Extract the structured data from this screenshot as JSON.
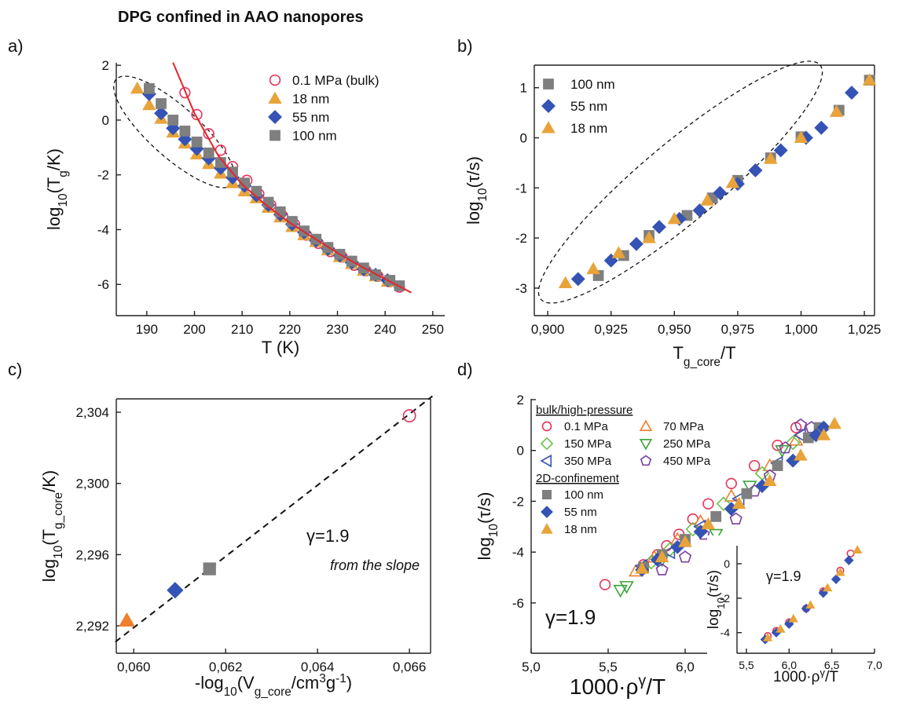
{
  "title": "DPG confined in AAO nanopores",
  "chart_data": [
    {
      "type": "scatter",
      "panel_label": "a)",
      "xlabel": [
        "T (K)"
      ],
      "ylabel": [
        "log",
        {
          "sub": "10"
        },
        "(T",
        {
          "sub": "g"
        },
        "/K)"
      ],
      "xlim": [
        183.6,
        252.5
      ],
      "ylim": [
        -7.14,
        2.09
      ],
      "xticks": [
        190,
        200,
        210,
        220,
        230,
        240,
        250
      ],
      "yticks": [
        -6,
        -4,
        -2,
        0,
        2
      ],
      "frame": "axes",
      "legend": "upper right",
      "series": [
        {
          "name": "0.1 MPa (bulk)",
          "color": "#e8325a",
          "marker": "circle",
          "filled": false,
          "x": [
            198,
            200.5,
            203,
            205.5,
            208,
            211,
            213.5,
            216,
            218.5,
            221,
            223.5,
            226,
            228.5,
            231,
            233.5,
            236,
            238.5,
            241,
            243
          ],
          "values": [
            1.0,
            0.2,
            -0.5,
            -1.1,
            -1.7,
            -2.2,
            -2.7,
            -3.1,
            -3.5,
            -3.8,
            -4.2,
            -4.5,
            -4.8,
            -5.0,
            -5.3,
            -5.5,
            -5.7,
            -5.9,
            -6.1
          ]
        },
        {
          "name": "18 nm",
          "color": "#e8a33a",
          "marker": "triangle",
          "filled": true,
          "x": [
            188,
            190.5,
            193,
            195.5,
            198,
            200.5,
            203,
            205.5,
            208,
            210.5,
            213,
            215.5,
            218,
            220.5,
            223,
            225.5,
            228,
            230.5,
            233,
            235.5,
            238,
            240.5
          ],
          "values": [
            1.15,
            0.55,
            0.05,
            -0.45,
            -0.85,
            -1.25,
            -1.6,
            -1.95,
            -2.3,
            -2.6,
            -2.85,
            -3.2,
            -3.55,
            -3.9,
            -4.2,
            -4.45,
            -4.75,
            -5.0,
            -5.25,
            -5.5,
            -5.7,
            -5.9
          ]
        },
        {
          "name": "55 nm",
          "color": "#3553b5",
          "marker": "diamond",
          "filled": true,
          "x": [
            190.5,
            193,
            195.5,
            198,
            200.5,
            203,
            205.5,
            208,
            210.5,
            213,
            215.5,
            218,
            220.5,
            223,
            225.5,
            228,
            230.5,
            233,
            235.5,
            238,
            240.5
          ],
          "values": [
            0.95,
            0.25,
            -0.3,
            -0.7,
            -1.05,
            -1.4,
            -1.75,
            -2.1,
            -2.4,
            -2.75,
            -3.1,
            -3.45,
            -3.8,
            -4.1,
            -4.4,
            -4.7,
            -4.95,
            -5.2,
            -5.45,
            -5.65,
            -5.85
          ]
        },
        {
          "name": "100 nm",
          "color": "#7f7f7f",
          "marker": "square",
          "filled": true,
          "x": [
            190.5,
            193,
            195.5,
            198,
            200.5,
            203,
            205.5,
            208,
            210.5,
            213,
            215.5,
            218,
            220.5,
            223,
            225.5,
            228,
            230.5,
            233,
            235.5,
            238,
            241,
            243
          ],
          "values": [
            1.15,
            0.6,
            0.0,
            -0.4,
            -0.8,
            -1.2,
            -1.55,
            -1.9,
            -2.3,
            -2.6,
            -3.0,
            -3.35,
            -3.7,
            -4.05,
            -4.35,
            -4.65,
            -4.9,
            -5.15,
            -5.4,
            -5.65,
            -5.85,
            -6.05
          ]
        },
        {
          "color": "#e6242b",
          "style": "solid",
          "x": [
            195.5,
            200,
            205,
            210,
            215,
            220,
            225,
            230,
            235,
            240,
            245.5
          ],
          "values": [
            2.1,
            0.25,
            -1.3,
            -2.35,
            -3.1,
            -3.75,
            -4.3,
            -4.85,
            -5.35,
            -5.8,
            -6.3
          ]
        }
      ]
    },
    {
      "type": "scatter",
      "panel_label": "b)",
      "xlabel": [
        "T",
        {
          "sub": "g_core"
        },
        "/T"
      ],
      "ylabel": [
        "log",
        {
          "sub": "10"
        },
        "(τ/s)"
      ],
      "xlim": [
        0.8947,
        1.029
      ],
      "ylim": [
        -3.55,
        1.45
      ],
      "xticks": [
        {
          "value": 0.9,
          "label": "0,900"
        },
        {
          "value": 0.925,
          "label": "0,925"
        },
        {
          "value": 0.95,
          "label": "0,950"
        },
        {
          "value": 0.975,
          "label": "0,975"
        },
        {
          "value": 1.0,
          "label": "1,000"
        },
        {
          "value": 1.025,
          "label": "1,025"
        }
      ],
      "yticks": [
        -3,
        -2,
        -1,
        0,
        1
      ],
      "frame": "box",
      "legend": "upper left",
      "series": [
        {
          "name": "100 nm",
          "color": "#7f7f7f",
          "marker": "square",
          "filled": true,
          "x": [
            0.92,
            0.93,
            0.94,
            0.955,
            0.965,
            0.975,
            0.988,
            1.0,
            1.015,
            1.027
          ],
          "values": [
            -2.75,
            -2.35,
            -1.95,
            -1.55,
            -1.2,
            -0.85,
            -0.4,
            0.02,
            0.55,
            1.15
          ]
        },
        {
          "name": "55 nm",
          "color": "#3553b5",
          "marker": "diamond",
          "filled": true,
          "x": [
            0.912,
            0.925,
            0.935,
            0.944,
            0.952,
            0.96,
            0.968,
            0.975,
            0.982,
            0.992,
            1.002,
            1.008,
            1.02
          ],
          "values": [
            -2.82,
            -2.45,
            -2.12,
            -1.78,
            -1.62,
            -1.45,
            -1.1,
            -0.92,
            -0.65,
            -0.25,
            0.0,
            0.2,
            0.9
          ]
        },
        {
          "name": "18 nm",
          "color": "#e8a33a",
          "marker": "triangle",
          "filled": true,
          "x": [
            0.907,
            0.918,
            0.928,
            0.94,
            0.95,
            0.963,
            0.973,
            0.988,
            1.0,
            1.014,
            1.027
          ],
          "values": [
            -2.9,
            -2.62,
            -2.3,
            -2.0,
            -1.62,
            -1.25,
            -0.9,
            -0.42,
            0.0,
            0.52,
            1.15
          ]
        }
      ]
    },
    {
      "type": "scatter",
      "panel_label": "c)",
      "xlabel": [
        "-log",
        {
          "sub": "10"
        },
        "(V",
        {
          "sub": "g_core"
        },
        "/cm",
        {
          "sup": "3"
        },
        "g",
        {
          "sup": "-1"
        },
        ")"
      ],
      "ylabel": [
        "log",
        {
          "sub": "10"
        },
        "(T",
        {
          "sub": "g_core"
        },
        "/K)"
      ],
      "xlim": [
        0.05962,
        0.06646
      ],
      "ylim": [
        2.29046,
        2.30475
      ],
      "xticks": [
        {
          "value": 0.06,
          "label": "0,060"
        },
        {
          "value": 0.062,
          "label": "0,062"
        },
        {
          "value": 0.064,
          "label": "0,064"
        },
        {
          "value": 0.066,
          "label": "0,066"
        }
      ],
      "yticks": [
        {
          "value": 2.292,
          "label": "2,292"
        },
        {
          "value": 2.296,
          "label": "2,296"
        },
        {
          "value": 2.3,
          "label": "2,300"
        },
        {
          "value": 2.304,
          "label": "2,304"
        }
      ],
      "frame": "box",
      "annotations": [
        "γ=1.9",
        "from the slope"
      ],
      "series": [
        {
          "color": "#111111",
          "style": "dashed",
          "x": [
            0.0596,
            0.0665
          ],
          "values": [
            2.2911,
            2.3049
          ]
        },
        {
          "color": "#f07e2c",
          "marker": "triangle",
          "filled": true,
          "x": [
            0.05985
          ],
          "values": [
            2.2923
          ]
        },
        {
          "color": "#3553b5",
          "marker": "diamond",
          "filled": true,
          "x": [
            0.0609
          ],
          "values": [
            2.294
          ]
        },
        {
          "color": "#7f7f7f",
          "marker": "square",
          "filled": true,
          "x": [
            0.06165
          ],
          "values": [
            2.2952
          ]
        },
        {
          "color": "#e8325a",
          "marker": "circle",
          "filled": false,
          "x": [
            0.066
          ],
          "values": [
            2.3038
          ]
        }
      ]
    },
    {
      "type": "scatter",
      "panel_label": "d)",
      "xlabel": [
        "1000·ρ",
        {
          "sup": "γ"
        },
        "/T"
      ],
      "ylabel": [
        "log",
        {
          "sub": "10"
        },
        "(τ/s)"
      ],
      "xlim": [
        5.0,
        7.0
      ],
      "ylim": [
        -7.98,
        2.03
      ],
      "xticks": [
        {
          "value": 5.0,
          "label": "5,0"
        },
        {
          "value": 5.5,
          "label": "5,5"
        },
        {
          "value": 6.0,
          "label": "6,0"
        }
      ],
      "yticks": [
        -6,
        -4,
        -2,
        0,
        2
      ],
      "frame": "axes",
      "legend": "upper left",
      "annotations": [
        "γ=1.9"
      ],
      "groups": [
        {
          "name": "bulk/high-pressure",
          "series": [
            {
              "name": "0.1 MPa",
              "color": "#e8325a",
              "marker": "circle",
              "filled": false,
              "x": [
                5.48,
                5.73,
                5.82,
                5.88,
                5.96,
                6.05,
                6.15,
                6.3,
                6.45,
                6.6,
                6.72
              ],
              "values": [
                -5.28,
                -4.5,
                -4.1,
                -3.75,
                -3.3,
                -2.7,
                -2.1,
                -1.3,
                -0.6,
                0.2,
                0.9
              ]
            },
            {
              "name": "70 MPa",
              "color": "#f07e2c",
              "marker": "triangle",
              "filled": false,
              "x": [
                5.68,
                5.8,
                5.95,
                6.1,
                6.3,
                6.55,
                6.72
              ],
              "values": [
                -4.75,
                -4.2,
                -3.5,
                -2.8,
                -1.8,
                -0.6,
                0.4
              ]
            },
            {
              "name": "150 MPa",
              "color": "#6cc24a",
              "marker": "diamond",
              "filled": false,
              "x": [
                5.78,
                5.9,
                6.05,
                6.25,
                6.5,
                6.7
              ],
              "values": [
                -4.4,
                -3.9,
                -3.1,
                -2.1,
                -0.9,
                0.3
              ]
            },
            {
              "name": "250 MPa",
              "color": "#3aa53a",
              "marker": "triangle-down",
              "filled": false,
              "x": [
                5.58,
                5.62,
                5.85,
                6.2,
                6.42,
                6.63
              ],
              "values": [
                -5.5,
                -5.35,
                -4.3,
                -3.3,
                -1.4,
                0.0
              ]
            },
            {
              "name": "350 MPa",
              "color": "#3553b5",
              "marker": "triangle-left",
              "filled": false,
              "x": [
                5.72,
                5.9,
                6.1,
                6.35,
                6.6,
                6.75
              ],
              "values": [
                -4.55,
                -4.0,
                -3.0,
                -1.9,
                -0.5,
                0.6
              ]
            },
            {
              "name": "450 MPa",
              "color": "#7a3ea0",
              "marker": "pentagon",
              "filled": false,
              "x": [
                5.85,
                6.0,
                6.12,
                6.2,
                6.33,
                6.45,
                6.55,
                6.65,
                6.75,
                6.82
              ],
              "values": [
                -4.7,
                -4.2,
                -3.3,
                -3.6,
                -2.7,
                -1.6,
                -1.0,
                0.1,
                1.0,
                0.9
              ]
            }
          ]
        },
        {
          "name": "2D-confinement",
          "series": [
            {
              "name": "100 nm",
              "color": "#7f7f7f",
              "marker": "square",
              "filled": true,
              "x": [
                5.73,
                5.85,
                6.0,
                6.2,
                6.4,
                6.6,
                6.8,
                6.87
              ],
              "values": [
                -4.6,
                -4.1,
                -3.5,
                -2.6,
                -1.7,
                -0.6,
                0.5,
                0.9
              ]
            },
            {
              "name": "55 nm",
              "color": "#3553b5",
              "marker": "diamond",
              "filled": true,
              "x": [
                5.72,
                5.82,
                5.95,
                6.1,
                6.3,
                6.5,
                6.7,
                6.85,
                6.9
              ],
              "values": [
                -4.7,
                -4.3,
                -3.8,
                -3.2,
                -2.3,
                -1.4,
                -0.4,
                0.6,
                0.9
              ]
            },
            {
              "name": "18 nm",
              "color": "#e8a33a",
              "marker": "triangle",
              "filled": true,
              "x": [
                5.72,
                5.85,
                6.0,
                6.15,
                6.35,
                6.55,
                6.75,
                6.9,
                6.97
              ],
              "values": [
                -4.65,
                -4.2,
                -3.6,
                -2.9,
                -2.1,
                -1.2,
                -0.2,
                0.6,
                1.05
              ]
            }
          ]
        }
      ]
    },
    {
      "type": "scatter",
      "xlabel": [
        "1000·ρ",
        {
          "sup": "γ"
        },
        "/T"
      ],
      "ylabel": [
        "log",
        {
          "sub": "10"
        },
        "(τ/s)"
      ],
      "xlim": [
        5.39,
        7.0
      ],
      "ylim": [
        -5.2,
        1.05
      ],
      "xticks": [
        {
          "value": 5.5,
          "label": "5,5"
        },
        {
          "value": 6.0,
          "label": "6,0"
        },
        {
          "value": 6.5,
          "label": "6,5"
        },
        {
          "value": 7.0,
          "label": "7,0"
        }
      ],
      "yticks": [
        -4,
        -2,
        0
      ],
      "frame": "axes",
      "annotations": [
        "γ=1.9"
      ],
      "series": [
        {
          "color": "#e8325a",
          "marker": "circle",
          "filled": false,
          "x": [
            5.75,
            5.85,
            6.0,
            6.2,
            6.4,
            6.6,
            6.72
          ],
          "values": [
            -4.2,
            -3.9,
            -3.4,
            -2.6,
            -1.6,
            -0.4,
            0.6
          ]
        },
        {
          "color": "#3553b5",
          "marker": "diamond",
          "filled": true,
          "x": [
            5.72,
            5.85,
            6.0,
            6.2,
            6.4,
            6.55,
            6.7
          ],
          "values": [
            -4.4,
            -4.0,
            -3.5,
            -2.6,
            -1.7,
            -0.9,
            0.2
          ]
        },
        {
          "color": "#e8a33a",
          "marker": "triangle",
          "filled": true,
          "x": [
            5.75,
            5.9,
            6.05,
            6.25,
            6.45,
            6.6,
            6.8
          ],
          "values": [
            -4.3,
            -3.8,
            -3.2,
            -2.4,
            -1.4,
            -0.5,
            0.8
          ]
        }
      ]
    }
  ]
}
